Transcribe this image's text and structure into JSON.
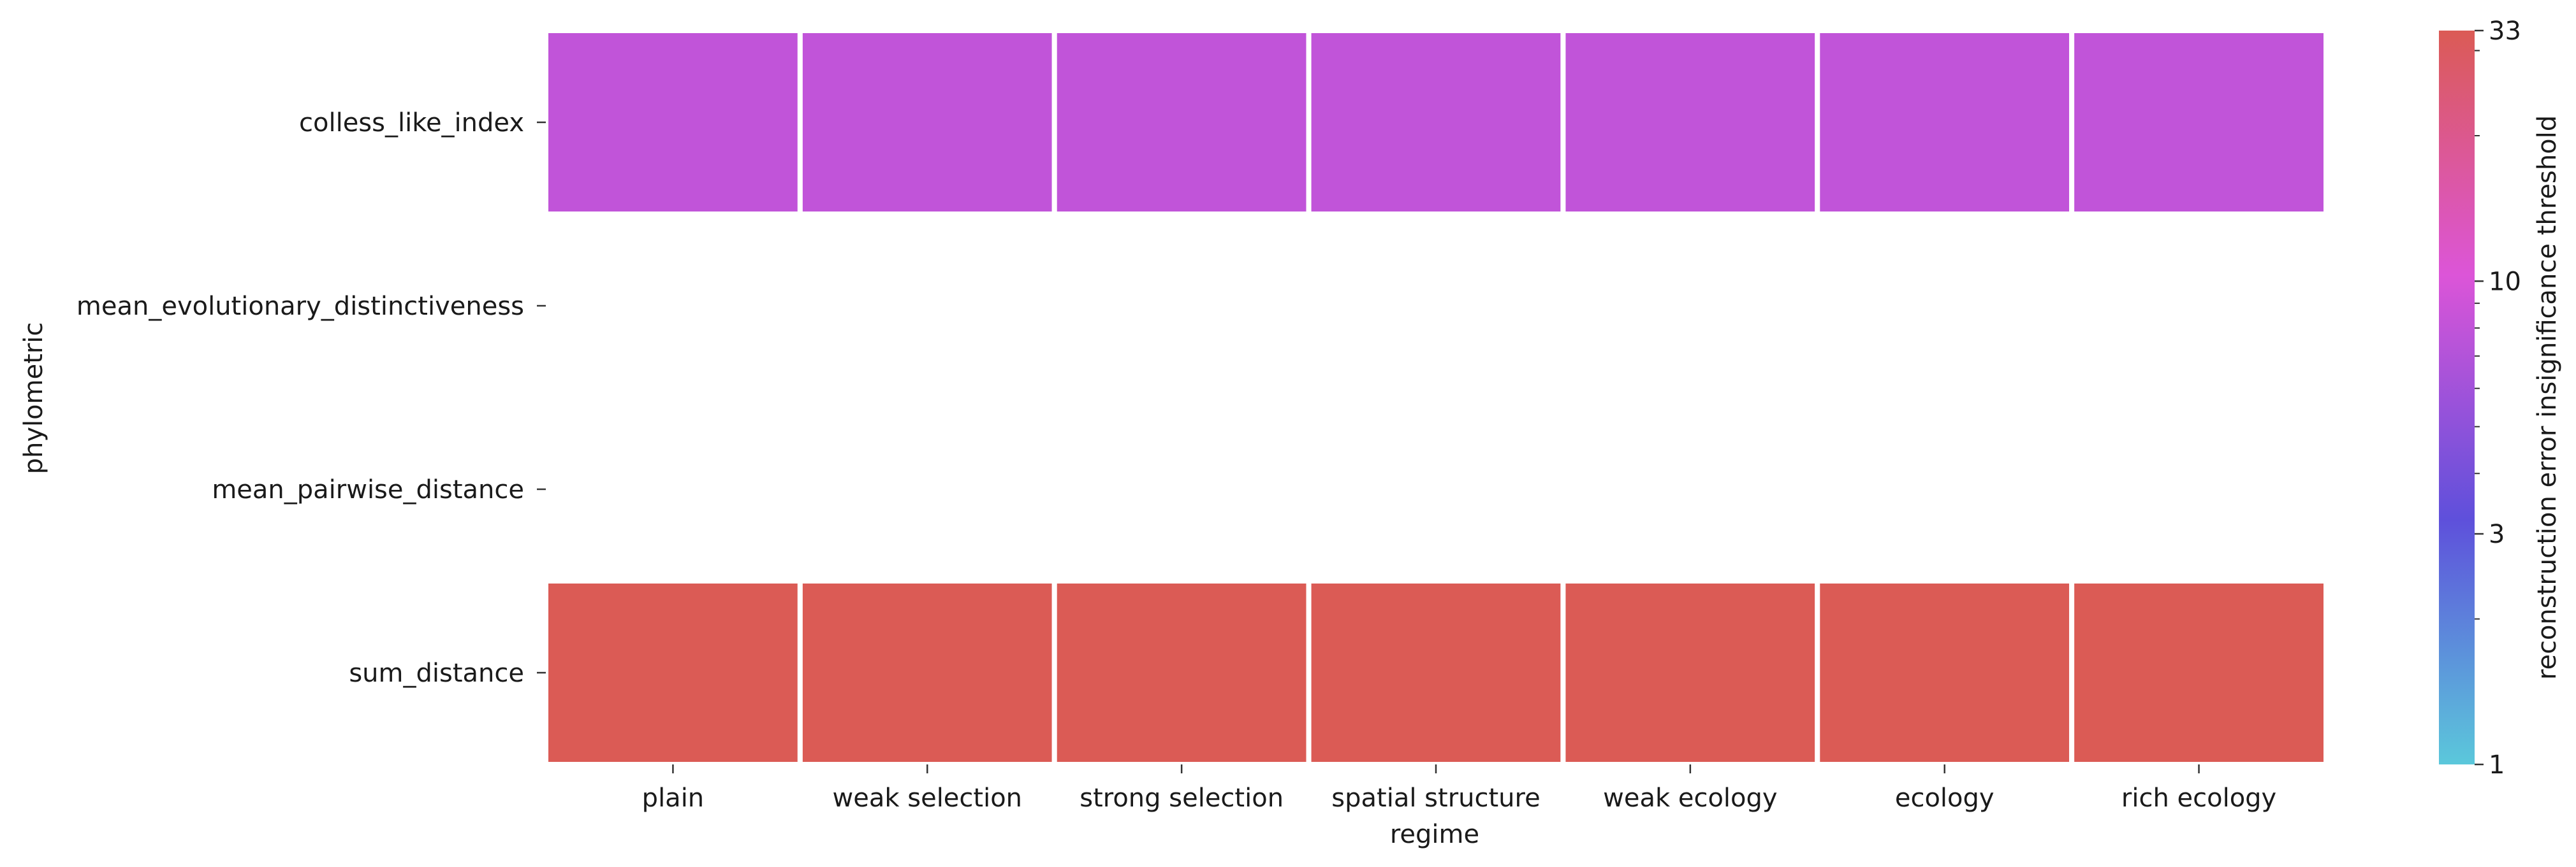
{
  "chart_data": {
    "type": "heatmap",
    "xlabel": "regime",
    "ylabel": "phylometric",
    "x_categories": [
      "plain",
      "weak selection",
      "strong selection",
      "spatial structure",
      "weak ecology",
      "ecology",
      "rich ecology"
    ],
    "y_categories": [
      "colless_like_index",
      "mean_evolutionary_distinctiveness",
      "mean_pairwise_distance",
      "sum_distance"
    ],
    "values": [
      [
        8,
        8,
        8,
        8,
        8,
        8,
        8
      ],
      [
        null,
        null,
        null,
        null,
        null,
        null,
        null
      ],
      [
        null,
        null,
        null,
        null,
        null,
        null,
        null
      ],
      [
        33,
        33,
        33,
        33,
        33,
        33,
        33
      ]
    ],
    "colorbar": {
      "label": "reconstruction error insignificance threshold",
      "scale": "log",
      "range": [
        1,
        33
      ],
      "ticks": [
        1,
        3,
        10,
        33
      ],
      "tick_labels": [
        "1",
        "3",
        "10",
        "33"
      ],
      "colors": [
        "#5bc8db",
        "#5e50db",
        "#dc55d8",
        "#db5b55"
      ]
    },
    "grid": false
  }
}
